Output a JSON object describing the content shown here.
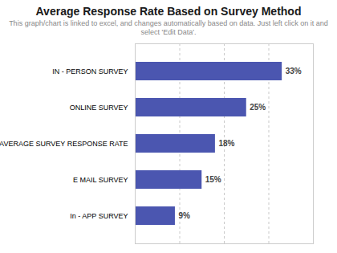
{
  "chart_data": {
    "type": "bar",
    "title": "Average Response Rate Based on Survey Method",
    "subtitle": "This graph/chart is linked to excel, and changes automatically based on data. Just left click on it and select 'Edit Data'.",
    "orientation": "horizontal",
    "categories": [
      "IN - PERSON SURVEY",
      "ONLINE SURVEY",
      "AVERAGE SURVEY RESPONSE RATE",
      "E MAIL SURVEY",
      "In - APP SURVEY"
    ],
    "values": [
      33,
      25,
      18,
      15,
      9
    ],
    "value_labels": [
      "33%",
      "25%",
      "18%",
      "15%",
      "9%"
    ],
    "data_labels": true,
    "color": "#4B56B0",
    "xlim": [
      0,
      40
    ],
    "xticks": [
      10,
      20,
      30
    ],
    "grid": true,
    "tick_labels": "y"
  }
}
